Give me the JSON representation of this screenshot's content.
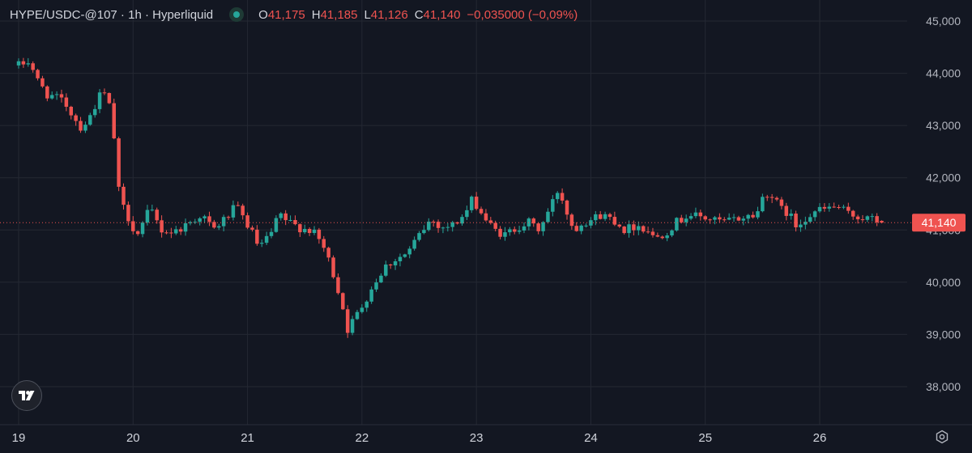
{
  "legend": {
    "symbol": "HYPE/USDC-@107 · 1h · Hyperliquid",
    "o_label": "O",
    "o_value": "41,175",
    "h_label": "H",
    "h_value": "41,185",
    "l_label": "L",
    "l_value": "41,126",
    "c_label": "C",
    "c_value": "41,140",
    "change": "−0,035000 (−0,09%)"
  },
  "last_price_label": "41,140",
  "colors": {
    "up": "#26a69a",
    "down": "#ef5350",
    "grid": "#242833",
    "background": "#131722"
  },
  "icons": {
    "logo": "tradingview-logo-icon",
    "settings": "settings-icon"
  },
  "chart_data": {
    "type": "candlestick",
    "title": "",
    "xlabel": "",
    "ylabel": "",
    "x_ticks": [
      "19",
      "20",
      "21",
      "22",
      "23",
      "24",
      "25",
      "26"
    ],
    "y_ticks": [
      "45,000",
      "44,000",
      "43,000",
      "42,000",
      "41,000",
      "40,000",
      "39,000",
      "38,000"
    ],
    "y_tick_values": [
      45000,
      44000,
      43000,
      42000,
      41000,
      40000,
      39000,
      38000
    ],
    "ylim": [
      37300,
      45300
    ],
    "last_price": 41140,
    "grid": true,
    "series": [
      {
        "name": "HYPE/USDC-@107",
        "interval": "1h",
        "close_path": [
          {
            "t": 19.0,
            "c": 44150
          },
          {
            "t": 19.1,
            "c": 44250
          },
          {
            "t": 19.15,
            "c": 43900
          },
          {
            "t": 19.25,
            "c": 43600
          },
          {
            "t": 19.4,
            "c": 43450
          },
          {
            "t": 19.5,
            "c": 43100
          },
          {
            "t": 19.55,
            "c": 42950
          },
          {
            "t": 19.62,
            "c": 43150
          },
          {
            "t": 19.7,
            "c": 43550
          },
          {
            "t": 19.75,
            "c": 43600
          },
          {
            "t": 19.82,
            "c": 43200
          },
          {
            "t": 19.86,
            "c": 41900
          },
          {
            "t": 19.9,
            "c": 41500
          },
          {
            "t": 20.0,
            "c": 41050
          },
          {
            "t": 20.05,
            "c": 40900
          },
          {
            "t": 20.1,
            "c": 41200
          },
          {
            "t": 20.15,
            "c": 41400
          },
          {
            "t": 20.25,
            "c": 41000
          },
          {
            "t": 20.35,
            "c": 40950
          },
          {
            "t": 20.5,
            "c": 41150
          },
          {
            "t": 20.6,
            "c": 41300
          },
          {
            "t": 20.7,
            "c": 41000
          },
          {
            "t": 20.82,
            "c": 41250
          },
          {
            "t": 20.9,
            "c": 41450
          },
          {
            "t": 21.0,
            "c": 41100
          },
          {
            "t": 21.05,
            "c": 40900
          },
          {
            "t": 21.1,
            "c": 40650
          },
          {
            "t": 21.2,
            "c": 40900
          },
          {
            "t": 21.28,
            "c": 41300
          },
          {
            "t": 21.35,
            "c": 41150
          },
          {
            "t": 21.45,
            "c": 41050
          },
          {
            "t": 21.55,
            "c": 41000
          },
          {
            "t": 21.65,
            "c": 40750
          },
          {
            "t": 21.72,
            "c": 40350
          },
          {
            "t": 21.78,
            "c": 39950
          },
          {
            "t": 21.84,
            "c": 39450
          },
          {
            "t": 21.88,
            "c": 39050
          },
          {
            "t": 21.92,
            "c": 39250
          },
          {
            "t": 22.0,
            "c": 39550
          },
          {
            "t": 22.1,
            "c": 39950
          },
          {
            "t": 22.2,
            "c": 40300
          },
          {
            "t": 22.3,
            "c": 40450
          },
          {
            "t": 22.4,
            "c": 40550
          },
          {
            "t": 22.5,
            "c": 40900
          },
          {
            "t": 22.6,
            "c": 41200
          },
          {
            "t": 22.7,
            "c": 41050
          },
          {
            "t": 22.8,
            "c": 41100
          },
          {
            "t": 22.9,
            "c": 41300
          },
          {
            "t": 22.97,
            "c": 41600
          },
          {
            "t": 23.05,
            "c": 41300
          },
          {
            "t": 23.15,
            "c": 41000
          },
          {
            "t": 23.25,
            "c": 40900
          },
          {
            "t": 23.35,
            "c": 41050
          },
          {
            "t": 23.45,
            "c": 41150
          },
          {
            "t": 23.55,
            "c": 41000
          },
          {
            "t": 23.65,
            "c": 41450
          },
          {
            "t": 23.72,
            "c": 41800
          },
          {
            "t": 23.78,
            "c": 41400
          },
          {
            "t": 23.85,
            "c": 41000
          },
          {
            "t": 23.92,
            "c": 41150
          },
          {
            "t": 24.0,
            "c": 41200
          },
          {
            "t": 24.1,
            "c": 41300
          },
          {
            "t": 24.2,
            "c": 41200
          },
          {
            "t": 24.3,
            "c": 41000
          },
          {
            "t": 24.4,
            "c": 41100
          },
          {
            "t": 24.5,
            "c": 41000
          },
          {
            "t": 24.55,
            "c": 40850
          },
          {
            "t": 24.65,
            "c": 40950
          },
          {
            "t": 24.75,
            "c": 41150
          },
          {
            "t": 24.85,
            "c": 41300
          },
          {
            "t": 24.95,
            "c": 41250
          },
          {
            "t": 25.05,
            "c": 41200
          },
          {
            "t": 25.15,
            "c": 41150
          },
          {
            "t": 25.25,
            "c": 41200
          },
          {
            "t": 25.35,
            "c": 41250
          },
          {
            "t": 25.45,
            "c": 41300
          },
          {
            "t": 25.52,
            "c": 41750
          },
          {
            "t": 25.58,
            "c": 41650
          },
          {
            "t": 25.66,
            "c": 41400
          },
          {
            "t": 25.74,
            "c": 41300
          },
          {
            "t": 25.78,
            "c": 41050
          },
          {
            "t": 25.85,
            "c": 41200
          },
          {
            "t": 25.95,
            "c": 41350
          },
          {
            "t": 26.05,
            "c": 41400
          },
          {
            "t": 26.15,
            "c": 41450
          },
          {
            "t": 26.25,
            "c": 41300
          },
          {
            "t": 26.35,
            "c": 41250
          },
          {
            "t": 26.45,
            "c": 41200
          },
          {
            "t": 26.55,
            "c": 41140
          }
        ]
      }
    ]
  }
}
